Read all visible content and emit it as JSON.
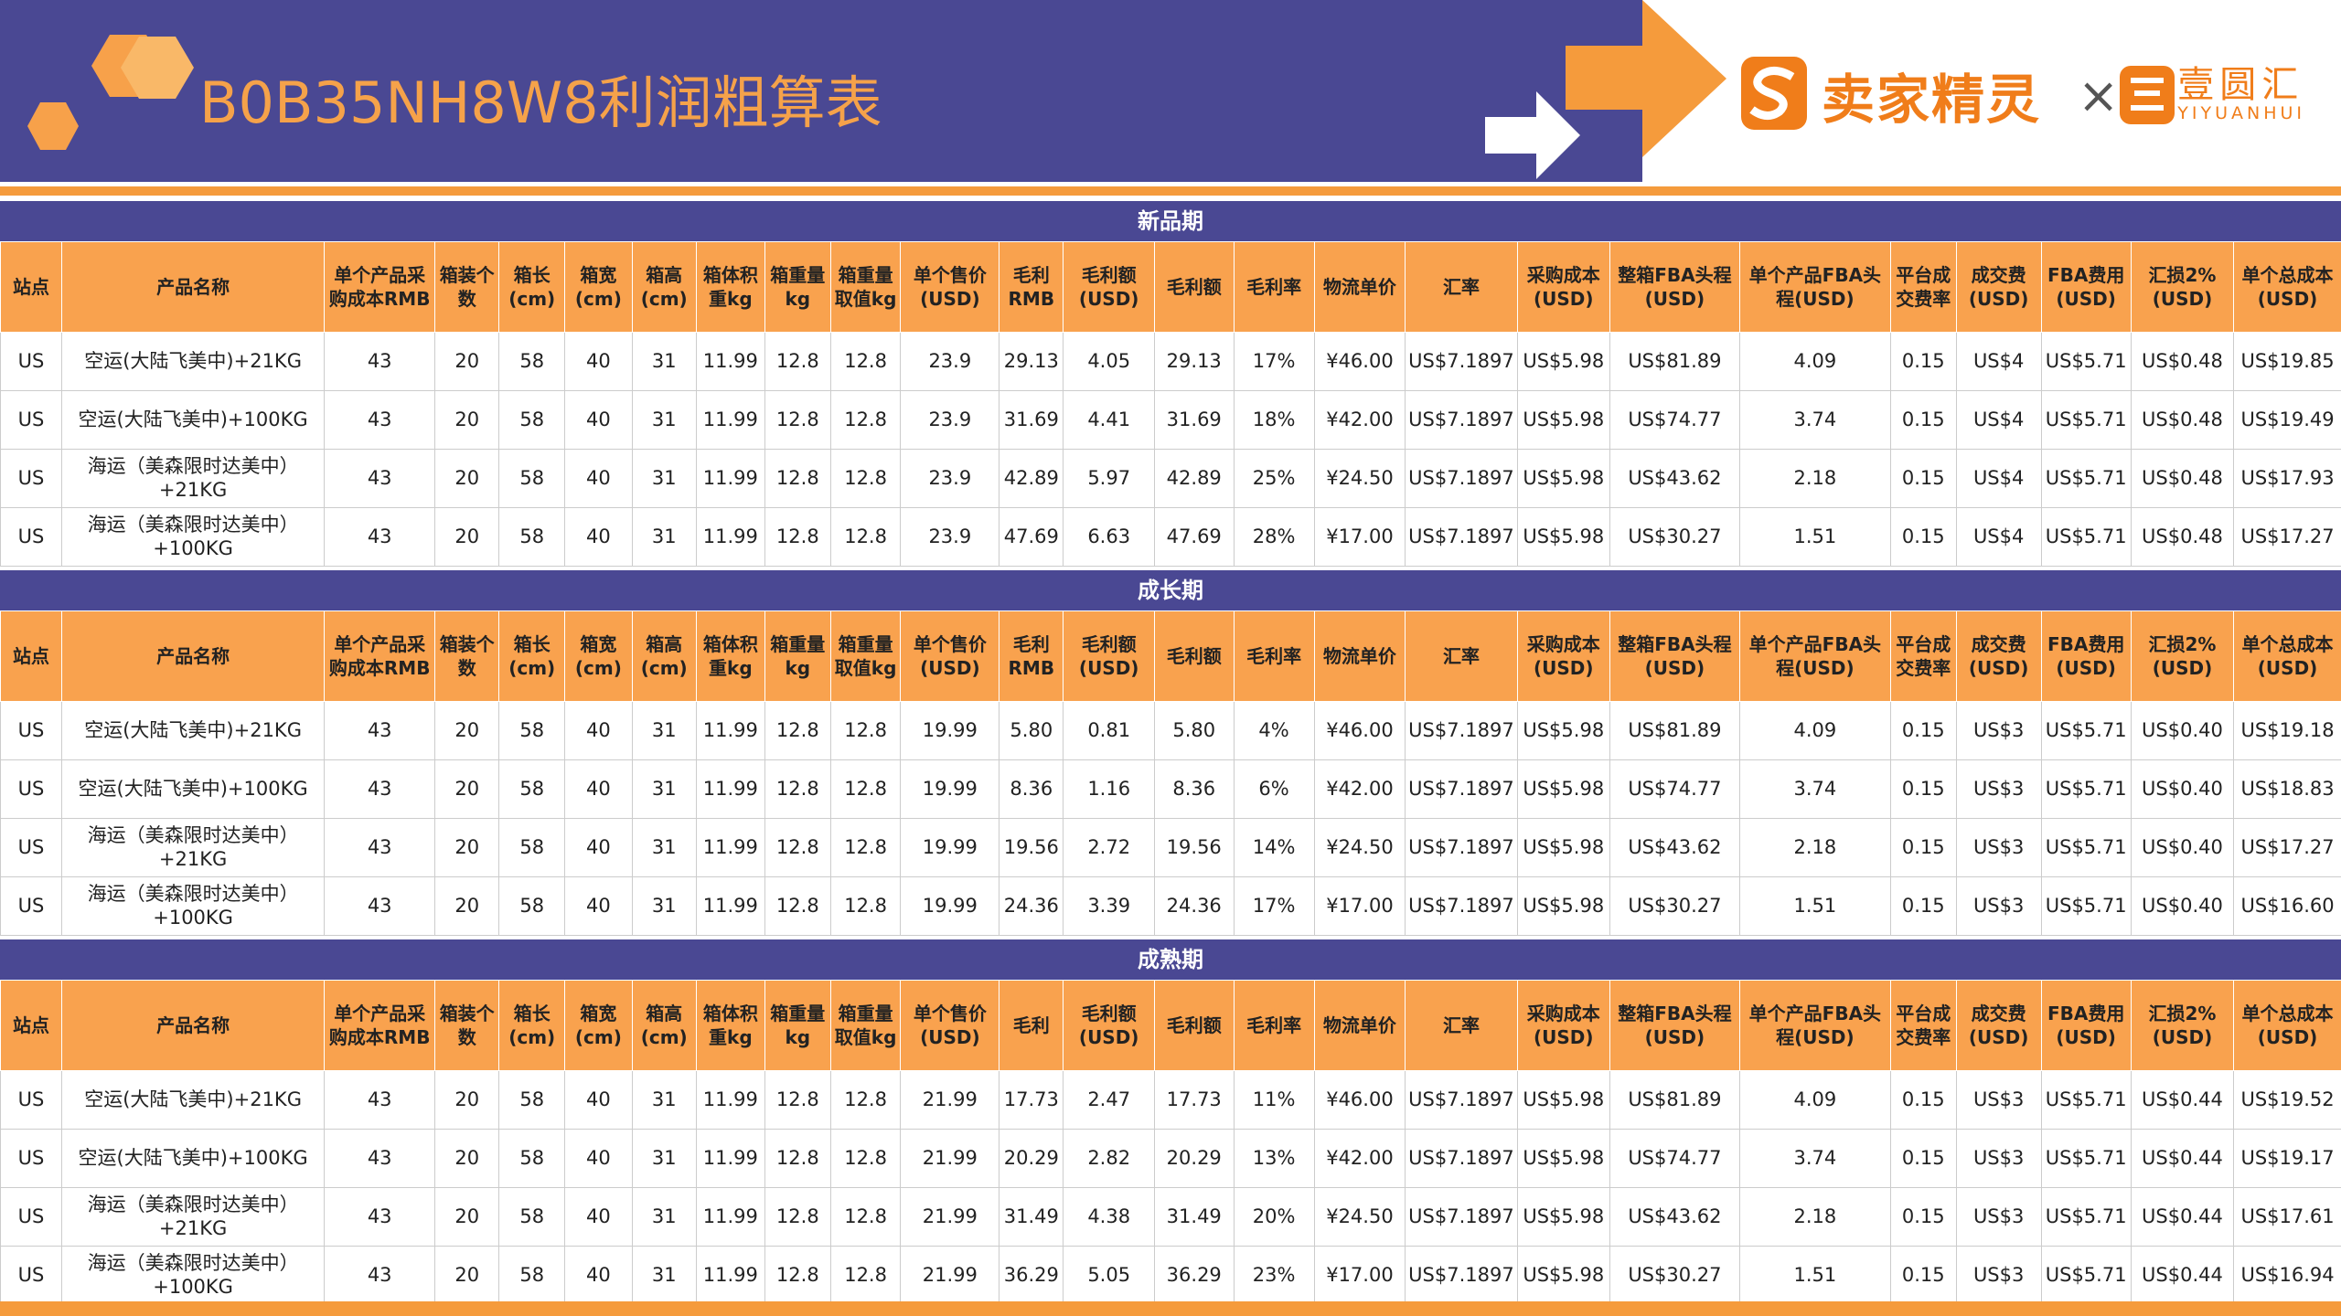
{
  "header": {
    "title": "B0B35NH8W8利润粗算表",
    "brand1": "卖家精灵",
    "separator": "×",
    "brand2": "壹圆汇",
    "brand2_sub": "YIYUANHUI"
  },
  "sections": [
    {
      "title": "新品期",
      "columns": [
        "站点",
        "产品名称",
        "单个产品采购成本RMB",
        "箱装个数",
        "箱长(cm)",
        "箱宽(cm)",
        "箱高(cm)",
        "箱体积重kg",
        "箱重量kg",
        "箱重量取值kg",
        "单个售价(USD)",
        "毛利RMB",
        "毛利额(USD)",
        "毛利额",
        "毛利率",
        "物流单价",
        "汇率",
        "采购成本(USD)",
        "整箱FBA头程(USD)",
        "单个产品FBA头程(USD)",
        "平台成交费率",
        "成交费(USD)",
        "FBA费用(USD)",
        "汇损2%(USD)",
        "单个总成本(USD)"
      ],
      "rows": [
        [
          "US",
          "空运(大陆飞美中)+21KG",
          "43",
          "20",
          "58",
          "40",
          "31",
          "11.99",
          "12.8",
          "12.8",
          "23.9",
          "29.13",
          "4.05",
          "29.13",
          "17%",
          "¥46.00",
          "US$7.1897",
          "US$5.98",
          "US$81.89",
          "4.09",
          "0.15",
          "US$4",
          "US$5.71",
          "US$0.48",
          "US$19.85"
        ],
        [
          "US",
          "空运(大陆飞美中)+100KG",
          "43",
          "20",
          "58",
          "40",
          "31",
          "11.99",
          "12.8",
          "12.8",
          "23.9",
          "31.69",
          "4.41",
          "31.69",
          "18%",
          "¥42.00",
          "US$7.1897",
          "US$5.98",
          "US$74.77",
          "3.74",
          "0.15",
          "US$4",
          "US$5.71",
          "US$0.48",
          "US$19.49"
        ],
        [
          "US",
          "海运（美森限时达美中）+21KG",
          "43",
          "20",
          "58",
          "40",
          "31",
          "11.99",
          "12.8",
          "12.8",
          "23.9",
          "42.89",
          "5.97",
          "42.89",
          "25%",
          "¥24.50",
          "US$7.1897",
          "US$5.98",
          "US$43.62",
          "2.18",
          "0.15",
          "US$4",
          "US$5.71",
          "US$0.48",
          "US$17.93"
        ],
        [
          "US",
          "海运（美森限时达美中）+100KG",
          "43",
          "20",
          "58",
          "40",
          "31",
          "11.99",
          "12.8",
          "12.8",
          "23.9",
          "47.69",
          "6.63",
          "47.69",
          "28%",
          "¥17.00",
          "US$7.1897",
          "US$5.98",
          "US$30.27",
          "1.51",
          "0.15",
          "US$4",
          "US$5.71",
          "US$0.48",
          "US$17.27"
        ]
      ]
    },
    {
      "title": "成长期",
      "columns": [
        "站点",
        "产品名称",
        "单个产品采购成本RMB",
        "箱装个数",
        "箱长(cm)",
        "箱宽(cm)",
        "箱高(cm)",
        "箱体积重kg",
        "箱重量kg",
        "箱重量取值kg",
        "单个售价(USD)",
        "毛利RMB",
        "毛利额(USD)",
        "毛利额",
        "毛利率",
        "物流单价",
        "汇率",
        "采购成本(USD)",
        "整箱FBA头程(USD)",
        "单个产品FBA头程(USD)",
        "平台成交费率",
        "成交费(USD)",
        "FBA费用(USD)",
        "汇损2%(USD)",
        "单个总成本(USD)"
      ],
      "rows": [
        [
          "US",
          "空运(大陆飞美中)+21KG",
          "43",
          "20",
          "58",
          "40",
          "31",
          "11.99",
          "12.8",
          "12.8",
          "19.99",
          "5.80",
          "0.81",
          "5.80",
          "4%",
          "¥46.00",
          "US$7.1897",
          "US$5.98",
          "US$81.89",
          "4.09",
          "0.15",
          "US$3",
          "US$5.71",
          "US$0.40",
          "US$19.18"
        ],
        [
          "US",
          "空运(大陆飞美中)+100KG",
          "43",
          "20",
          "58",
          "40",
          "31",
          "11.99",
          "12.8",
          "12.8",
          "19.99",
          "8.36",
          "1.16",
          "8.36",
          "6%",
          "¥42.00",
          "US$7.1897",
          "US$5.98",
          "US$74.77",
          "3.74",
          "0.15",
          "US$3",
          "US$5.71",
          "US$0.40",
          "US$18.83"
        ],
        [
          "US",
          "海运（美森限时达美中）+21KG",
          "43",
          "20",
          "58",
          "40",
          "31",
          "11.99",
          "12.8",
          "12.8",
          "19.99",
          "19.56",
          "2.72",
          "19.56",
          "14%",
          "¥24.50",
          "US$7.1897",
          "US$5.98",
          "US$43.62",
          "2.18",
          "0.15",
          "US$3",
          "US$5.71",
          "US$0.40",
          "US$17.27"
        ],
        [
          "US",
          "海运（美森限时达美中）+100KG",
          "43",
          "20",
          "58",
          "40",
          "31",
          "11.99",
          "12.8",
          "12.8",
          "19.99",
          "24.36",
          "3.39",
          "24.36",
          "17%",
          "¥17.00",
          "US$7.1897",
          "US$5.98",
          "US$30.27",
          "1.51",
          "0.15",
          "US$3",
          "US$5.71",
          "US$0.40",
          "US$16.60"
        ]
      ]
    },
    {
      "title": "成熟期",
      "columns": [
        "站点",
        "产品名称",
        "单个产品采购成本RMB",
        "箱装个数",
        "箱长(cm)",
        "箱宽(cm)",
        "箱高(cm)",
        "箱体积重kg",
        "箱重量kg",
        "箱重量取值kg",
        "单个售价(USD)",
        "毛利",
        "毛利额(USD)",
        "毛利额",
        "毛利率",
        "物流单价",
        "汇率",
        "采购成本(USD)",
        "整箱FBA头程(USD)",
        "单个产品FBA头程(USD)",
        "平台成交费率",
        "成交费(USD)",
        "FBA费用(USD)",
        "汇损2%(USD)",
        "单个总成本(USD)"
      ],
      "rows": [
        [
          "US",
          "空运(大陆飞美中)+21KG",
          "43",
          "20",
          "58",
          "40",
          "31",
          "11.99",
          "12.8",
          "12.8",
          "21.99",
          "17.73",
          "2.47",
          "17.73",
          "11%",
          "¥46.00",
          "US$7.1897",
          "US$5.98",
          "US$81.89",
          "4.09",
          "0.15",
          "US$3",
          "US$5.71",
          "US$0.44",
          "US$19.52"
        ],
        [
          "US",
          "空运(大陆飞美中)+100KG",
          "43",
          "20",
          "58",
          "40",
          "31",
          "11.99",
          "12.8",
          "12.8",
          "21.99",
          "20.29",
          "2.82",
          "20.29",
          "13%",
          "¥42.00",
          "US$7.1897",
          "US$5.98",
          "US$74.77",
          "3.74",
          "0.15",
          "US$3",
          "US$5.71",
          "US$0.44",
          "US$19.17"
        ],
        [
          "US",
          "海运（美森限时达美中）+21KG",
          "43",
          "20",
          "58",
          "40",
          "31",
          "11.99",
          "12.8",
          "12.8",
          "21.99",
          "31.49",
          "4.38",
          "31.49",
          "20%",
          "¥24.50",
          "US$7.1897",
          "US$5.98",
          "US$43.62",
          "2.18",
          "0.15",
          "US$3",
          "US$5.71",
          "US$0.44",
          "US$17.61"
        ],
        [
          "US",
          "海运（美森限时达美中）+100KG",
          "43",
          "20",
          "58",
          "40",
          "31",
          "11.99",
          "12.8",
          "12.8",
          "21.99",
          "36.29",
          "5.05",
          "36.29",
          "23%",
          "¥17.00",
          "US$7.1897",
          "US$5.98",
          "US$30.27",
          "1.51",
          "0.15",
          "US$3",
          "US$5.71",
          "US$0.44",
          "US$16.94"
        ]
      ]
    }
  ]
}
